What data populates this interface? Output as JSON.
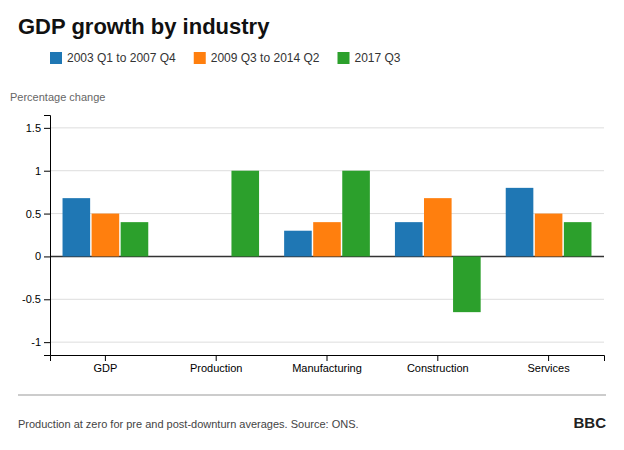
{
  "chart_data": {
    "type": "bar",
    "title": "GDP growth by industry",
    "subtitle": "Percentage change",
    "annotations": [
      "Production at zero for pre and post-downturn averages. Source: ONS.",
      "BBC"
    ],
    "categories": [
      "GDP",
      "Production",
      "Manufacturing",
      "Construction",
      "Services"
    ],
    "series": [
      {
        "name": "2003 Q1 to 2007 Q4",
        "values": [
          0.68,
          0.0,
          0.3,
          0.4,
          0.8
        ]
      },
      {
        "name": "2009 Q3 to 2014 Q2",
        "values": [
          0.5,
          0.0,
          0.4,
          0.68,
          0.5
        ]
      },
      {
        "name": "2017 Q3",
        "values": [
          0.4,
          1.0,
          1.0,
          -0.65,
          0.4
        ]
      }
    ],
    "ylim": [
      -1.15,
      1.65
    ],
    "yticks": [
      -1,
      -0.5,
      0,
      0.5,
      1,
      1.5
    ],
    "grid": true,
    "legend": "top"
  }
}
